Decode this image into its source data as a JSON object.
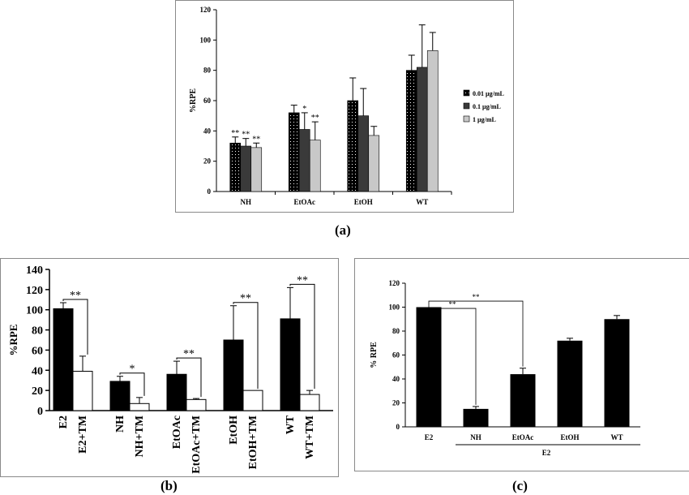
{
  "panel_labels": {
    "a": "(a)",
    "b": "(b)",
    "c": "(c)"
  },
  "colors": {
    "black": "#000000",
    "dark": "#3a3a3a",
    "light": "#c8c8c8",
    "white": "#ffffff"
  },
  "chart_data": [
    {
      "id": "a",
      "type": "bar",
      "ylabel": "%RPE",
      "ylim": [
        0,
        120
      ],
      "yticks": [
        0,
        20,
        40,
        60,
        80,
        100,
        120
      ],
      "categories": [
        "NH",
        "EtOAc",
        "EtOH",
        "WT"
      ],
      "legend_position": "right",
      "series": [
        {
          "name": "0.01 µg/mL",
          "fill": "dotted-black",
          "values": [
            32,
            52,
            60,
            80
          ],
          "errors": [
            4,
            5,
            15,
            10
          ],
          "significance": [
            "**",
            "",
            "",
            ""
          ]
        },
        {
          "name": "0.1 µg/mL",
          "fill": "dark-gray",
          "values": [
            30,
            41,
            50,
            82
          ],
          "errors": [
            5,
            11,
            18,
            28
          ],
          "significance": [
            "**",
            "*",
            "",
            ""
          ]
        },
        {
          "name": "1 µg/mL",
          "fill": "light-gray",
          "values": [
            29,
            34,
            37,
            93
          ],
          "errors": [
            3,
            12,
            6,
            12
          ],
          "significance": [
            "**",
            "**",
            "",
            ""
          ]
        }
      ]
    },
    {
      "id": "b",
      "type": "bar",
      "ylabel": "%RPE",
      "ylim": [
        0,
        140
      ],
      "yticks": [
        0,
        20,
        40,
        60,
        80,
        100,
        120,
        140
      ],
      "groups": [
        {
          "labels": [
            "E2",
            "E2+TM"
          ],
          "values": [
            101,
            39
          ],
          "errors": [
            6,
            15
          ],
          "significance": "**"
        },
        {
          "labels": [
            "NH",
            "NH+TM"
          ],
          "values": [
            29,
            7
          ],
          "errors": [
            5,
            6
          ],
          "significance": "*"
        },
        {
          "labels": [
            "EtOAc",
            "EtOAc+TM"
          ],
          "values": [
            36,
            11
          ],
          "errors": [
            13,
            1
          ],
          "significance": "**"
        },
        {
          "labels": [
            "EtOH",
            "EtOH+TM"
          ],
          "values": [
            70,
            20
          ],
          "errors": [
            34,
            0
          ],
          "significance": "**"
        },
        {
          "labels": [
            "WT",
            "WT+TM"
          ],
          "values": [
            91,
            16
          ],
          "errors": [
            31,
            4
          ],
          "significance": "**"
        }
      ]
    },
    {
      "id": "c",
      "type": "bar",
      "ylabel": "% RPE",
      "ylim": [
        0,
        120
      ],
      "yticks": [
        0,
        20,
        40,
        60,
        80,
        100,
        120
      ],
      "categories": [
        "E2",
        "NH",
        "EtOAc",
        "EtOH",
        "WT"
      ],
      "values": [
        100,
        15,
        44,
        72,
        90
      ],
      "errors": [
        0,
        2,
        5,
        2,
        3
      ],
      "group_label": "E2",
      "comparisons": [
        {
          "from": "E2",
          "to": "NH",
          "label": "**"
        },
        {
          "from": "E2",
          "to": "EtOAc",
          "label": "**"
        }
      ]
    }
  ]
}
